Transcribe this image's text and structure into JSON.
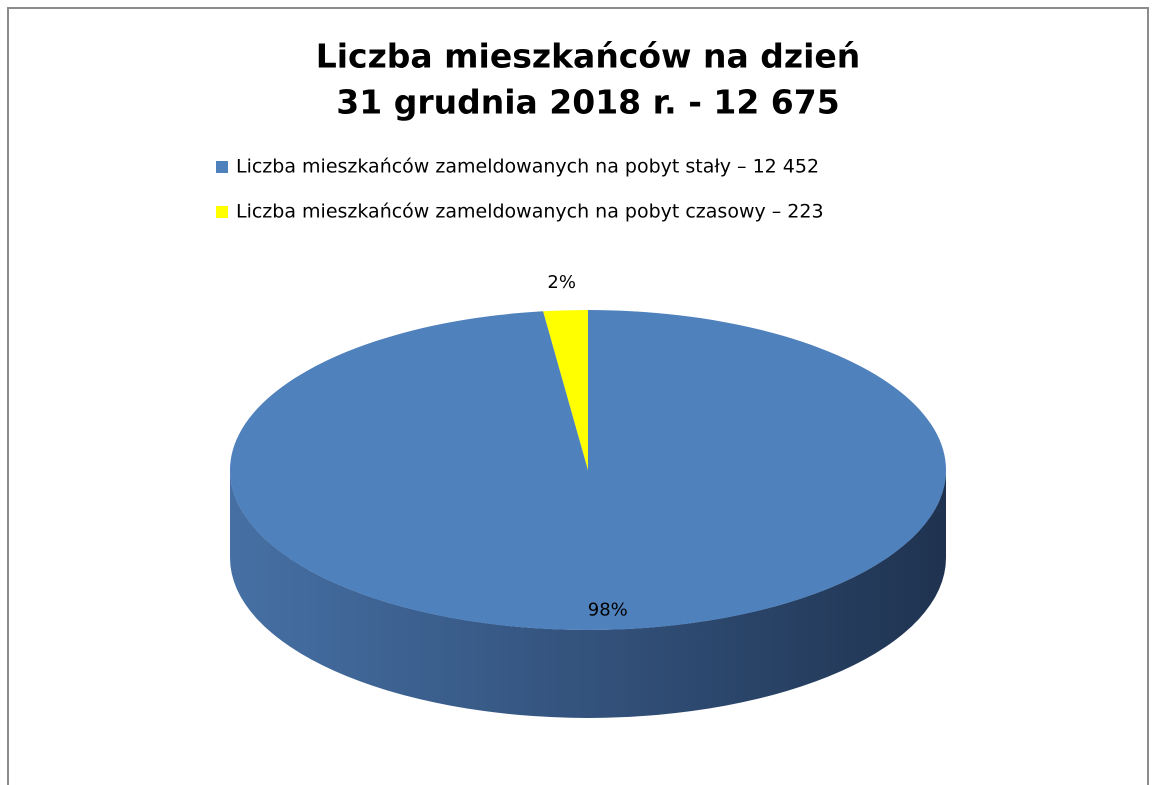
{
  "chart_data": {
    "type": "pie3d",
    "title": [
      "Liczba mieszkańców na dzień",
      "31 grudnia 2018 r. - 12 675"
    ],
    "categories": [
      "Liczba mieszkańców zameldowanych na pobyt stały – 12 452",
      "Liczba mieszkańców zameldowanych na pobyt czasowy – 223"
    ],
    "values": [
      98,
      2
    ],
    "value_labels": [
      "98%",
      "2%"
    ],
    "colors": [
      "#4f81bd",
      "#ffff00"
    ],
    "legend": "top"
  }
}
